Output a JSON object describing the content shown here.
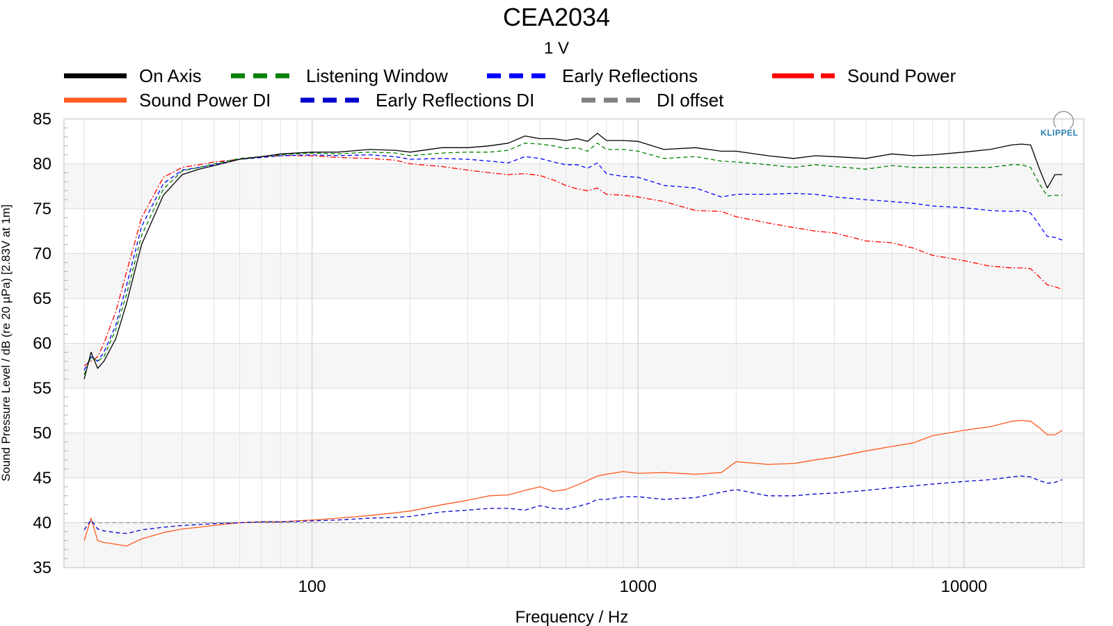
{
  "chart_data": {
    "type": "line",
    "title": "CEA2034",
    "subtitle": "1 V",
    "xlabel": "Frequency / Hz",
    "ylabel": "Sound Pressure Level / dB (re 20 µPa)  [2.83V at 1m]",
    "xscale": "log",
    "xlim": [
      20,
      20000
    ],
    "ylim": [
      35,
      85
    ],
    "yticks": [
      "35",
      "40",
      "45",
      "50",
      "55",
      "60",
      "65",
      "70",
      "75",
      "80",
      "85"
    ],
    "xticks": [
      "100",
      "1000",
      "10000"
    ],
    "grid": true,
    "legend_position": "top",
    "logo": "KLIPPEL",
    "series": [
      {
        "name": "On Axis",
        "color": "#000000",
        "style": "solid",
        "x": [
          20,
          21,
          22,
          23,
          25,
          27,
          30,
          35,
          40,
          45,
          50,
          60,
          70,
          80,
          100,
          120,
          150,
          180,
          200,
          250,
          300,
          350,
          400,
          450,
          500,
          550,
          600,
          650,
          700,
          750,
          800,
          900,
          1000,
          1200,
          1500,
          1800,
          2000,
          2500,
          3000,
          3500,
          4000,
          5000,
          6000,
          7000,
          8000,
          10000,
          12000,
          14000,
          15000,
          16000,
          17000,
          18000,
          19000,
          20000
        ],
        "y": [
          56,
          59,
          57.2,
          58,
          60.5,
          64.5,
          71,
          76.5,
          78.8,
          79.4,
          79.8,
          80.5,
          80.8,
          81.1,
          81.3,
          81.3,
          81.6,
          81.5,
          81.3,
          81.8,
          81.8,
          82,
          82.3,
          83.1,
          82.8,
          82.8,
          82.6,
          82.8,
          82.5,
          83.4,
          82.6,
          82.6,
          82.5,
          81.6,
          81.8,
          81.4,
          81.4,
          80.9,
          80.6,
          80.9,
          80.8,
          80.6,
          81.1,
          80.9,
          81,
          81.3,
          81.6,
          82.1,
          82.2,
          82.1,
          79.5,
          77.3,
          78.8,
          78.8
        ]
      },
      {
        "name": "Listening Window",
        "color": "#008000",
        "style": "dashed",
        "x": [
          20,
          21,
          22,
          23,
          25,
          27,
          30,
          35,
          40,
          45,
          50,
          60,
          70,
          80,
          100,
          120,
          150,
          180,
          200,
          250,
          300,
          350,
          400,
          450,
          500,
          550,
          600,
          650,
          700,
          750,
          800,
          900,
          1000,
          1200,
          1500,
          1800,
          2000,
          2500,
          3000,
          3500,
          4000,
          5000,
          6000,
          7000,
          8000,
          10000,
          12000,
          14000,
          15000,
          16000,
          17000,
          18000,
          19000,
          20000
        ],
        "y": [
          56.5,
          58.5,
          58,
          58.5,
          61.5,
          65.5,
          72,
          77.2,
          79.2,
          79.6,
          80,
          80.6,
          80.8,
          81,
          81.2,
          81.1,
          81.3,
          81.2,
          80.9,
          81.2,
          81.3,
          81.3,
          81.5,
          82.3,
          82.2,
          82,
          81.7,
          81.8,
          81.4,
          82.3,
          81.6,
          81.6,
          81.4,
          80.6,
          80.8,
          80.3,
          80.2,
          79.9,
          79.6,
          79.9,
          79.7,
          79.4,
          79.8,
          79.6,
          79.6,
          79.6,
          79.6,
          79.9,
          79.9,
          79.6,
          77.8,
          76.4,
          76.5,
          76.5
        ]
      },
      {
        "name": "Early Reflections",
        "color": "#0000ff",
        "style": "dashed",
        "x": [
          20,
          21,
          22,
          23,
          25,
          27,
          30,
          35,
          40,
          45,
          50,
          60,
          70,
          80,
          100,
          120,
          150,
          180,
          200,
          250,
          300,
          350,
          400,
          450,
          500,
          550,
          600,
          650,
          700,
          750,
          800,
          900,
          1000,
          1200,
          1500,
          1800,
          2000,
          2500,
          3000,
          3500,
          4000,
          5000,
          6000,
          7000,
          8000,
          10000,
          12000,
          14000,
          15000,
          16000,
          17000,
          18000,
          19000,
          20000
        ],
        "y": [
          57,
          58.5,
          58,
          59,
          62,
          66.5,
          73,
          77.8,
          79.3,
          79.6,
          79.9,
          80.5,
          80.7,
          80.9,
          81,
          80.9,
          81,
          80.8,
          80.5,
          80.6,
          80.5,
          80.3,
          80.1,
          80.8,
          80.6,
          80.2,
          79.9,
          79.9,
          79.5,
          80.1,
          78.9,
          78.6,
          78.5,
          77.6,
          77.3,
          76.3,
          76.6,
          76.6,
          76.7,
          76.6,
          76.3,
          76,
          75.8,
          75.6,
          75.3,
          75.1,
          74.8,
          74.7,
          74.8,
          74.5,
          73.2,
          71.9,
          71.8,
          71.5
        ]
      },
      {
        "name": "Sound Power",
        "color": "#ff0000",
        "style": "dashdot",
        "x": [
          20,
          21,
          22,
          23,
          25,
          27,
          30,
          35,
          40,
          45,
          50,
          60,
          70,
          80,
          100,
          120,
          150,
          180,
          200,
          250,
          300,
          350,
          400,
          450,
          500,
          550,
          600,
          650,
          700,
          750,
          800,
          900,
          1000,
          1200,
          1500,
          1800,
          2000,
          2500,
          3000,
          3500,
          4000,
          5000,
          6000,
          7000,
          8000,
          10000,
          12000,
          14000,
          15000,
          16000,
          17000,
          18000,
          19000,
          20000
        ],
        "y": [
          57.5,
          58,
          58.5,
          60,
          63.5,
          68,
          74,
          78.5,
          79.6,
          79.9,
          80.2,
          80.5,
          80.8,
          80.9,
          80.9,
          80.7,
          80.6,
          80.4,
          80,
          79.7,
          79.3,
          79,
          78.8,
          78.9,
          78.7,
          78.2,
          77.6,
          77.2,
          77,
          77.3,
          76.6,
          76.5,
          76.3,
          75.8,
          74.8,
          74.7,
          74.1,
          73.4,
          72.9,
          72.5,
          72.3,
          71.4,
          71.2,
          70.6,
          69.8,
          69.2,
          68.6,
          68.4,
          68.4,
          68.3,
          67.4,
          66.5,
          66.3,
          66
        ]
      },
      {
        "name": "Sound Power DI",
        "color": "#ff5a1f",
        "style": "solid",
        "x": [
          20,
          21,
          22,
          23,
          25,
          27,
          30,
          35,
          40,
          45,
          50,
          60,
          70,
          80,
          100,
          120,
          150,
          180,
          200,
          250,
          300,
          350,
          400,
          450,
          500,
          550,
          600,
          650,
          700,
          750,
          800,
          900,
          1000,
          1200,
          1500,
          1800,
          2000,
          2500,
          3000,
          3500,
          4000,
          5000,
          6000,
          7000,
          8000,
          10000,
          12000,
          14000,
          15000,
          16000,
          17000,
          18000,
          19000,
          20000
        ],
        "y": [
          38,
          40.5,
          38,
          37.8,
          37.6,
          37.4,
          38.2,
          38.9,
          39.3,
          39.5,
          39.7,
          40,
          40.1,
          40.1,
          40.3,
          40.5,
          40.8,
          41.1,
          41.3,
          42,
          42.5,
          43,
          43.1,
          43.6,
          44,
          43.5,
          43.7,
          44.2,
          44.7,
          45.2,
          45.4,
          45.7,
          45.5,
          45.6,
          45.4,
          45.6,
          46.8,
          46.5,
          46.6,
          47,
          47.3,
          48,
          48.5,
          48.9,
          49.7,
          50.3,
          50.7,
          51.3,
          51.4,
          51.3,
          50.6,
          49.8,
          49.8,
          50.3
        ]
      },
      {
        "name": "Early Reflections DI",
        "color": "#0000cc",
        "style": "dashed",
        "x": [
          20,
          21,
          22,
          23,
          25,
          27,
          30,
          35,
          40,
          45,
          50,
          60,
          70,
          80,
          100,
          120,
          150,
          180,
          200,
          250,
          300,
          350,
          400,
          450,
          500,
          550,
          600,
          650,
          700,
          750,
          800,
          900,
          1000,
          1200,
          1500,
          1800,
          2000,
          2500,
          3000,
          3500,
          4000,
          5000,
          6000,
          7000,
          8000,
          10000,
          12000,
          14000,
          15000,
          16000,
          17000,
          18000,
          19000,
          20000
        ],
        "y": [
          39.2,
          40.3,
          39.3,
          39.1,
          38.9,
          38.8,
          39.2,
          39.5,
          39.7,
          39.8,
          39.9,
          40,
          40.1,
          40.1,
          40.2,
          40.3,
          40.5,
          40.6,
          40.7,
          41.2,
          41.4,
          41.6,
          41.6,
          41.4,
          41.9,
          41.6,
          41.5,
          41.8,
          42.1,
          42.6,
          42.6,
          42.9,
          42.9,
          42.6,
          42.8,
          43.4,
          43.7,
          43,
          43,
          43.2,
          43.3,
          43.6,
          43.9,
          44.1,
          44.3,
          44.6,
          44.8,
          45.1,
          45.2,
          45.1,
          44.7,
          44.4,
          44.5,
          44.8
        ]
      },
      {
        "name": "DI offset",
        "color": "#808080",
        "style": "dashed",
        "x": [
          20,
          20000
        ],
        "y": [
          40,
          40
        ]
      }
    ]
  }
}
